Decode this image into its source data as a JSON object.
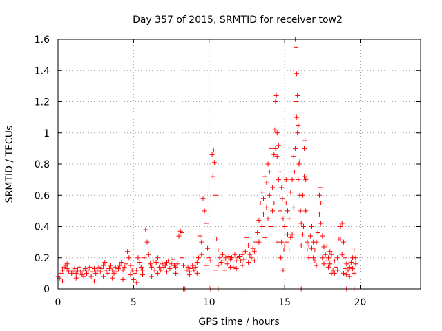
{
  "chart_data": {
    "type": "scatter",
    "title": "Day 357 of 2015, SRMTID for receiver tow2",
    "xlabel": "GPS time / hours",
    "ylabel": "SRMTID / TECUs",
    "xlim": [
      0,
      24
    ],
    "ylim": [
      0,
      1.6
    ],
    "xticks": [
      0,
      5,
      10,
      15,
      20
    ],
    "yticks": [
      0,
      0.2,
      0.4,
      0.6,
      0.8,
      1,
      1.2,
      1.4,
      1.6
    ],
    "xtick_labels": [
      "0",
      "5",
      "10",
      "15",
      "20"
    ],
    "ytick_labels": [
      "0",
      "0.2",
      "0.4",
      "0.6",
      "0.8",
      "1",
      "1.2",
      "1.4",
      "1.6"
    ],
    "grid": true,
    "marker": "+",
    "color": "#ff0000",
    "series": [
      {
        "name": "SRMTID",
        "points": [
          [
            0.0,
            0.08
          ],
          [
            0.1,
            0.07
          ],
          [
            0.2,
            0.1
          ],
          [
            0.3,
            0.12
          ],
          [
            0.4,
            0.14
          ],
          [
            0.5,
            0.15
          ],
          [
            0.6,
            0.13
          ],
          [
            0.7,
            0.11
          ],
          [
            0.8,
            0.12
          ],
          [
            0.9,
            0.1
          ],
          [
            1.0,
            0.11
          ],
          [
            1.1,
            0.13
          ],
          [
            1.2,
            0.1
          ],
          [
            1.3,
            0.12
          ],
          [
            1.4,
            0.14
          ],
          [
            1.5,
            0.11
          ],
          [
            1.6,
            0.09
          ],
          [
            1.7,
            0.12
          ],
          [
            1.8,
            0.13
          ],
          [
            1.9,
            0.1
          ],
          [
            2.0,
            0.12
          ],
          [
            2.1,
            0.14
          ],
          [
            2.2,
            0.08
          ],
          [
            2.3,
            0.11
          ],
          [
            2.4,
            0.13
          ],
          [
            2.5,
            0.1
          ],
          [
            2.6,
            0.12
          ],
          [
            2.7,
            0.14
          ],
          [
            2.8,
            0.11
          ],
          [
            2.9,
            0.13
          ],
          [
            3.0,
            0.15
          ],
          [
            3.1,
            0.17
          ],
          [
            3.2,
            0.12
          ],
          [
            3.3,
            0.1
          ],
          [
            3.4,
            0.13
          ],
          [
            3.5,
            0.15
          ],
          [
            3.6,
            0.12
          ],
          [
            3.7,
            0.1
          ],
          [
            3.8,
            0.14
          ],
          [
            3.9,
            0.11
          ],
          [
            4.0,
            0.13
          ],
          [
            4.1,
            0.15
          ],
          [
            4.2,
            0.17
          ],
          [
            4.3,
            0.12
          ],
          [
            4.4,
            0.14
          ],
          [
            4.5,
            0.16
          ],
          [
            4.6,
            0.24
          ],
          [
            4.7,
            0.2
          ],
          [
            4.8,
            0.15
          ],
          [
            4.9,
            0.12
          ],
          [
            5.0,
            0.06
          ],
          [
            5.1,
            0.1
          ],
          [
            5.2,
            0.12
          ],
          [
            5.3,
            0.2
          ],
          [
            5.4,
            0.17
          ],
          [
            5.5,
            0.14
          ],
          [
            5.6,
            0.12
          ],
          [
            5.7,
            0.2
          ],
          [
            5.8,
            0.38
          ],
          [
            5.9,
            0.3
          ],
          [
            6.0,
            0.22
          ],
          [
            6.1,
            0.16
          ],
          [
            6.2,
            0.14
          ],
          [
            6.3,
            0.18
          ],
          [
            6.4,
            0.12
          ],
          [
            6.5,
            0.17
          ],
          [
            6.6,
            0.2
          ],
          [
            6.7,
            0.14
          ],
          [
            6.8,
            0.12
          ],
          [
            6.9,
            0.16
          ],
          [
            7.0,
            0.14
          ],
          [
            7.1,
            0.15
          ],
          [
            7.2,
            0.17
          ],
          [
            7.3,
            0.18
          ],
          [
            7.4,
            0.13
          ],
          [
            7.5,
            0.16
          ],
          [
            7.6,
            0.19
          ],
          [
            7.7,
            0.15
          ],
          [
            7.8,
            0.14
          ],
          [
            7.9,
            0.16
          ],
          [
            8.0,
            0.34
          ],
          [
            8.1,
            0.37
          ],
          [
            8.2,
            0.36
          ],
          [
            8.3,
            0.15
          ],
          [
            8.4,
            0.0
          ],
          [
            8.5,
            0.12
          ],
          [
            8.6,
            0.14
          ],
          [
            8.7,
            0.11
          ],
          [
            8.8,
            0.13
          ],
          [
            8.9,
            0.15
          ],
          [
            9.0,
            0.12
          ],
          [
            9.1,
            0.14
          ],
          [
            9.2,
            0.17
          ],
          [
            9.3,
            0.2
          ],
          [
            9.4,
            0.34
          ],
          [
            9.5,
            0.3
          ],
          [
            9.6,
            0.58
          ],
          [
            9.7,
            0.5
          ],
          [
            9.8,
            0.42
          ],
          [
            9.9,
            0.26
          ],
          [
            10.0,
            0.2
          ],
          [
            10.1,
            0.18
          ],
          [
            10.2,
            0.86
          ],
          [
            10.3,
            0.89
          ],
          [
            10.35,
            0.81
          ],
          [
            10.4,
            0.6
          ],
          [
            10.5,
            0.32
          ],
          [
            10.6,
            0.25
          ],
          [
            10.7,
            0.2
          ],
          [
            10.8,
            0.17
          ],
          [
            10.9,
            0.22
          ],
          [
            11.0,
            0.18
          ],
          [
            11.1,
            0.2
          ],
          [
            11.2,
            0.16
          ],
          [
            11.3,
            0.21
          ],
          [
            11.4,
            0.19
          ],
          [
            11.5,
            0.2
          ],
          [
            11.6,
            0.14
          ],
          [
            11.7,
            0.22
          ],
          [
            11.8,
            0.18
          ],
          [
            11.9,
            0.2
          ],
          [
            12.0,
            0.21
          ],
          [
            12.1,
            0.18
          ],
          [
            12.2,
            0.22
          ],
          [
            12.3,
            0.19
          ],
          [
            12.4,
            0.24
          ],
          [
            12.5,
            0.33
          ],
          [
            12.6,
            0.28
          ],
          [
            12.7,
            0.22
          ],
          [
            12.8,
            0.2
          ],
          [
            12.9,
            0.26
          ],
          [
            13.0,
            0.24
          ],
          [
            13.1,
            0.3
          ],
          [
            13.2,
            0.36
          ],
          [
            13.3,
            0.44
          ],
          [
            13.4,
            0.55
          ],
          [
            13.5,
            0.62
          ],
          [
            13.6,
            0.58
          ],
          [
            13.7,
            0.72
          ],
          [
            13.8,
            0.68
          ],
          [
            13.9,
            0.8
          ],
          [
            14.0,
            0.6
          ],
          [
            14.1,
            0.9
          ],
          [
            14.2,
            0.5
          ],
          [
            14.3,
            0.86
          ],
          [
            14.4,
            1.2
          ],
          [
            14.45,
            1.24
          ],
          [
            14.5,
            1.0
          ],
          [
            14.6,
            0.7
          ],
          [
            14.7,
            0.5
          ],
          [
            14.8,
            0.3
          ],
          [
            14.9,
            0.12
          ],
          [
            15.0,
            0.4
          ],
          [
            15.1,
            0.55
          ],
          [
            15.2,
            0.35
          ],
          [
            15.3,
            0.45
          ],
          [
            15.4,
            0.62
          ],
          [
            15.5,
            0.7
          ],
          [
            15.6,
            0.52
          ],
          [
            15.7,
            1.6
          ],
          [
            15.75,
            1.55
          ],
          [
            15.8,
            1.38
          ],
          [
            15.85,
            1.24
          ],
          [
            15.9,
            1.05
          ],
          [
            15.95,
            0.8
          ],
          [
            16.0,
            0.6
          ],
          [
            16.1,
            0.42
          ],
          [
            16.2,
            0.35
          ],
          [
            16.3,
            0.9
          ],
          [
            16.35,
            0.95
          ],
          [
            16.4,
            0.5
          ],
          [
            16.5,
            0.3
          ],
          [
            16.6,
            0.28
          ],
          [
            16.7,
            0.34
          ],
          [
            16.8,
            0.26
          ],
          [
            16.9,
            0.2
          ],
          [
            17.0,
            0.18
          ],
          [
            17.1,
            0.3
          ],
          [
            17.2,
            0.36
          ],
          [
            17.3,
            0.48
          ],
          [
            17.35,
            0.65
          ],
          [
            17.4,
            0.55
          ],
          [
            17.5,
            0.34
          ],
          [
            17.6,
            0.27
          ],
          [
            17.7,
            0.22
          ],
          [
            17.8,
            0.18
          ],
          [
            17.9,
            0.2
          ],
          [
            18.0,
            0.16
          ],
          [
            18.1,
            0.22
          ],
          [
            18.2,
            0.12
          ],
          [
            18.3,
            0.18
          ],
          [
            18.4,
            0.14
          ],
          [
            18.5,
            0.2
          ],
          [
            18.6,
            0.32
          ],
          [
            18.7,
            0.4
          ],
          [
            18.8,
            0.42
          ],
          [
            18.9,
            0.3
          ],
          [
            19.0,
            0.2
          ],
          [
            19.1,
            0.16
          ],
          [
            19.2,
            0.12
          ],
          [
            19.3,
            0.14
          ],
          [
            19.4,
            0.17
          ],
          [
            19.5,
            0.2
          ],
          [
            19.6,
            0.25
          ],
          [
            19.7,
            0.16
          ],
          [
            0.3,
            0.05
          ],
          [
            0.6,
            0.16
          ],
          [
            1.2,
            0.07
          ],
          [
            1.7,
            0.08
          ],
          [
            2.4,
            0.05
          ],
          [
            3.0,
            0.08
          ],
          [
            3.6,
            0.07
          ],
          [
            4.3,
            0.06
          ],
          [
            4.8,
            0.09
          ],
          [
            5.2,
            0.04
          ],
          [
            5.6,
            0.09
          ],
          [
            6.2,
            0.08
          ],
          [
            6.6,
            0.1
          ],
          [
            7.2,
            0.11
          ],
          [
            7.8,
            0.1
          ],
          [
            8.2,
            0.2
          ],
          [
            8.7,
            0.09
          ],
          [
            9.2,
            0.1
          ],
          [
            9.5,
            0.22
          ],
          [
            9.8,
            0.15
          ],
          [
            10.25,
            0.72
          ],
          [
            10.4,
            0.12
          ],
          [
            10.6,
            0.15
          ],
          [
            11.0,
            0.12
          ],
          [
            11.4,
            0.14
          ],
          [
            11.8,
            0.13
          ],
          [
            12.2,
            0.15
          ],
          [
            12.6,
            0.17
          ],
          [
            13.0,
            0.18
          ],
          [
            13.3,
            0.3
          ],
          [
            13.5,
            0.4
          ],
          [
            13.6,
            0.48
          ],
          [
            13.7,
            0.33
          ],
          [
            13.8,
            0.52
          ],
          [
            13.9,
            0.45
          ],
          [
            14.0,
            0.75
          ],
          [
            14.1,
            0.4
          ],
          [
            14.2,
            0.65
          ],
          [
            14.3,
            0.55
          ],
          [
            14.35,
            1.02
          ],
          [
            14.4,
            0.9
          ],
          [
            14.5,
            0.85
          ],
          [
            14.55,
            0.3
          ],
          [
            14.6,
            0.92
          ],
          [
            14.7,
            0.75
          ],
          [
            14.75,
            0.2
          ],
          [
            14.8,
            0.65
          ],
          [
            14.85,
            0.58
          ],
          [
            14.9,
            0.45
          ],
          [
            14.95,
            0.25
          ],
          [
            15.0,
            0.28
          ],
          [
            15.1,
            0.7
          ],
          [
            15.15,
            0.3
          ],
          [
            15.2,
            0.5
          ],
          [
            15.3,
            0.25
          ],
          [
            15.4,
            0.33
          ],
          [
            15.5,
            0.35
          ],
          [
            15.6,
            0.85
          ],
          [
            15.65,
            0.75
          ],
          [
            15.7,
            0.9
          ],
          [
            15.75,
            1.2
          ],
          [
            15.8,
            1.1
          ],
          [
            15.85,
            1.0
          ],
          [
            15.9,
            0.7
          ],
          [
            16.0,
            0.82
          ],
          [
            16.05,
            0.5
          ],
          [
            16.1,
            0.28
          ],
          [
            16.2,
            0.6
          ],
          [
            16.25,
            0.4
          ],
          [
            16.3,
            0.72
          ],
          [
            16.4,
            0.7
          ],
          [
            16.5,
            0.25
          ],
          [
            16.6,
            0.2
          ],
          [
            16.8,
            0.4
          ],
          [
            16.9,
            0.3
          ],
          [
            17.0,
            0.25
          ],
          [
            17.1,
            0.15
          ],
          [
            17.3,
            0.6
          ],
          [
            17.4,
            0.42
          ],
          [
            17.5,
            0.2
          ],
          [
            17.6,
            0.16
          ],
          [
            17.8,
            0.28
          ],
          [
            17.9,
            0.14
          ],
          [
            18.0,
            0.24
          ],
          [
            18.1,
            0.1
          ],
          [
            18.3,
            0.1
          ],
          [
            18.5,
            0.12
          ],
          [
            18.7,
            0.32
          ],
          [
            18.8,
            0.22
          ],
          [
            18.9,
            0.1
          ],
          [
            19.0,
            0.13
          ],
          [
            19.1,
            0.09
          ],
          [
            19.3,
            0.08
          ],
          [
            19.5,
            0.13
          ],
          [
            19.6,
            0.1
          ],
          [
            19.7,
            0.2
          ],
          [
            8.3,
            0.0
          ],
          [
            10.1,
            0.0
          ],
          [
            10.6,
            0.0
          ],
          [
            12.5,
            0.0
          ],
          [
            16.1,
            0.0
          ],
          [
            19.1,
            0.0
          ],
          [
            19.6,
            0.0
          ]
        ]
      }
    ]
  }
}
